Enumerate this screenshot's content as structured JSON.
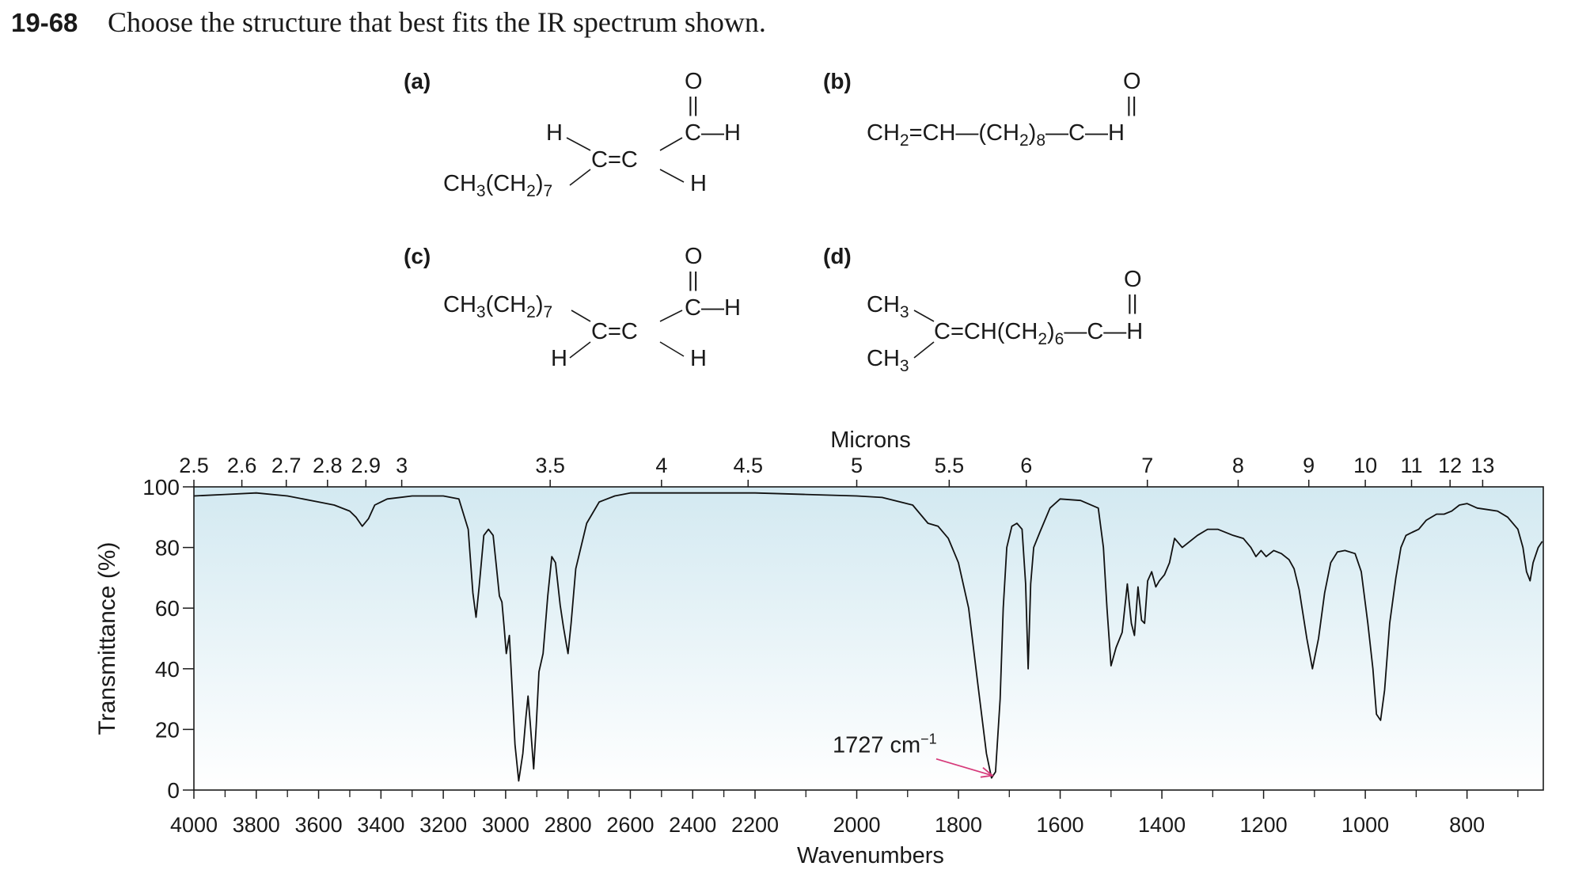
{
  "problem": {
    "number": "19-68",
    "text": "Choose the structure that best fits the IR spectrum shown."
  },
  "structures": {
    "a": {
      "label": "(a)",
      "o": "O",
      "dbl": "||",
      "cho": "C—H",
      "h_left": "H",
      "cc": "C=C",
      "h_right": "H",
      "chain": "CH3(CH2)7"
    },
    "b": {
      "label": "(b)",
      "o": "O",
      "dbl": "||",
      "formula": "CH2=CH—(CH2)8—C—H"
    },
    "c": {
      "label": "(c)",
      "o": "O",
      "dbl": "||",
      "cho": "C—H",
      "chain": "CH3(CH2)7",
      "cc": "C=C",
      "h_left": "H",
      "h_right": "H"
    },
    "d": {
      "label": "(d)",
      "o": "O",
      "dbl": "||",
      "ch3_top": "CH3",
      "ch3_bottom": "CH3",
      "formula": "C=CH(CH2)6—C—H"
    }
  },
  "chart_data": {
    "type": "line",
    "title": "",
    "xlabel": "Wavenumbers",
    "ylabel": "Transmittance (%)",
    "x2label": "Microns",
    "xlim": [
      4000,
      650
    ],
    "ylim": [
      0,
      100
    ],
    "x_scale": "piecewise-linear: 4000-2200 and 2200-650 cm-1 regions",
    "yticks": [
      100,
      80,
      60,
      40,
      20,
      0
    ],
    "xticks": [
      4000,
      3800,
      3600,
      3400,
      3200,
      3000,
      2800,
      2600,
      2400,
      2200,
      2000,
      1800,
      1600,
      1400,
      1200,
      1000,
      800
    ],
    "micron_ticks": [
      "2.5",
      "2.6",
      "2.7",
      "2.8",
      "2.9",
      "3",
      "3.5",
      "4",
      "4.5",
      "5",
      "5.5",
      "6",
      "7",
      "8",
      "9",
      "10",
      "11",
      "12",
      "13"
    ],
    "annotation": {
      "text": "1727 cm",
      "sup": "−1",
      "x": 1727,
      "y": 4
    },
    "line_color": "#111111",
    "background_gradient": [
      "#d3e9f1",
      "#ffffff"
    ],
    "arrow_color": "#d63a7a",
    "series": [
      {
        "values": [
          [
            4000,
            97
          ],
          [
            3900,
            97.5
          ],
          [
            3800,
            98
          ],
          [
            3700,
            97
          ],
          [
            3600,
            95
          ],
          [
            3550,
            94
          ],
          [
            3500,
            92
          ],
          [
            3480,
            90
          ],
          [
            3460,
            87
          ],
          [
            3440,
            89.5
          ],
          [
            3420,
            94
          ],
          [
            3380,
            96
          ],
          [
            3300,
            97
          ],
          [
            3200,
            97
          ],
          [
            3150,
            96
          ],
          [
            3120,
            86
          ],
          [
            3105,
            65
          ],
          [
            3095,
            57
          ],
          [
            3085,
            67
          ],
          [
            3070,
            84
          ],
          [
            3055,
            86
          ],
          [
            3040,
            84
          ],
          [
            3030,
            74
          ],
          [
            3020,
            64
          ],
          [
            3012,
            62
          ],
          [
            3005,
            54
          ],
          [
            2998,
            45
          ],
          [
            2993,
            48
          ],
          [
            2988,
            51
          ],
          [
            2980,
            35
          ],
          [
            2970,
            15
          ],
          [
            2958,
            3
          ],
          [
            2945,
            12
          ],
          [
            2935,
            24
          ],
          [
            2928,
            31
          ],
          [
            2921,
            22
          ],
          [
            2910,
            7
          ],
          [
            2902,
            21
          ],
          [
            2893,
            39
          ],
          [
            2880,
            45
          ],
          [
            2865,
            64
          ],
          [
            2852,
            77
          ],
          [
            2840,
            75
          ],
          [
            2825,
            61
          ],
          [
            2815,
            54
          ],
          [
            2805,
            48
          ],
          [
            2800,
            45
          ],
          [
            2790,
            55
          ],
          [
            2775,
            73
          ],
          [
            2740,
            88
          ],
          [
            2700,
            95
          ],
          [
            2650,
            97
          ],
          [
            2600,
            98
          ],
          [
            2500,
            98
          ],
          [
            2400,
            98
          ],
          [
            2300,
            98
          ],
          [
            2200,
            98
          ],
          [
            2100,
            97.5
          ],
          [
            2000,
            97
          ],
          [
            1950,
            96.5
          ],
          [
            1890,
            94
          ],
          [
            1860,
            88
          ],
          [
            1840,
            87
          ],
          [
            1820,
            83
          ],
          [
            1800,
            75
          ],
          [
            1780,
            60
          ],
          [
            1762,
            35
          ],
          [
            1745,
            12
          ],
          [
            1735,
            4
          ],
          [
            1727,
            6
          ],
          [
            1718,
            30
          ],
          [
            1712,
            60
          ],
          [
            1705,
            80
          ],
          [
            1695,
            87
          ],
          [
            1685,
            88
          ],
          [
            1675,
            86
          ],
          [
            1668,
            68
          ],
          [
            1663,
            40
          ],
          [
            1658,
            68
          ],
          [
            1652,
            80
          ],
          [
            1640,
            85
          ],
          [
            1620,
            93
          ],
          [
            1600,
            96
          ],
          [
            1560,
            95.5
          ],
          [
            1525,
            93
          ],
          [
            1515,
            80
          ],
          [
            1508,
            60
          ],
          [
            1500,
            41
          ],
          [
            1490,
            47
          ],
          [
            1478,
            52
          ],
          [
            1468,
            68
          ],
          [
            1460,
            55
          ],
          [
            1454,
            51
          ],
          [
            1447,
            67
          ],
          [
            1440,
            56
          ],
          [
            1434,
            55
          ],
          [
            1428,
            69
          ],
          [
            1420,
            72
          ],
          [
            1412,
            67
          ],
          [
            1405,
            69
          ],
          [
            1395,
            71
          ],
          [
            1385,
            75
          ],
          [
            1375,
            83
          ],
          [
            1360,
            80
          ],
          [
            1345,
            82
          ],
          [
            1330,
            84
          ],
          [
            1310,
            86
          ],
          [
            1290,
            86
          ],
          [
            1260,
            84
          ],
          [
            1240,
            83
          ],
          [
            1225,
            80
          ],
          [
            1215,
            77
          ],
          [
            1205,
            79
          ],
          [
            1195,
            77
          ],
          [
            1180,
            79
          ],
          [
            1165,
            78
          ],
          [
            1150,
            76
          ],
          [
            1140,
            73
          ],
          [
            1130,
            66
          ],
          [
            1115,
            50
          ],
          [
            1104,
            40
          ],
          [
            1092,
            50
          ],
          [
            1080,
            65
          ],
          [
            1068,
            75
          ],
          [
            1055,
            78.5
          ],
          [
            1040,
            79
          ],
          [
            1020,
            78
          ],
          [
            1008,
            72
          ],
          [
            995,
            55
          ],
          [
            985,
            40
          ],
          [
            978,
            25
          ],
          [
            970,
            23
          ],
          [
            962,
            33
          ],
          [
            952,
            55
          ],
          [
            940,
            70
          ],
          [
            930,
            80
          ],
          [
            920,
            84
          ],
          [
            908,
            85
          ],
          [
            895,
            86
          ],
          [
            880,
            89
          ],
          [
            860,
            91
          ],
          [
            845,
            91
          ],
          [
            830,
            92
          ],
          [
            815,
            94
          ],
          [
            800,
            94.5
          ],
          [
            780,
            93
          ],
          [
            760,
            92.5
          ],
          [
            740,
            92
          ],
          [
            720,
            90
          ],
          [
            700,
            86
          ],
          [
            690,
            80
          ],
          [
            683,
            72
          ],
          [
            676,
            69
          ],
          [
            670,
            75
          ],
          [
            660,
            80
          ],
          [
            652,
            82
          ]
        ]
      }
    ]
  }
}
